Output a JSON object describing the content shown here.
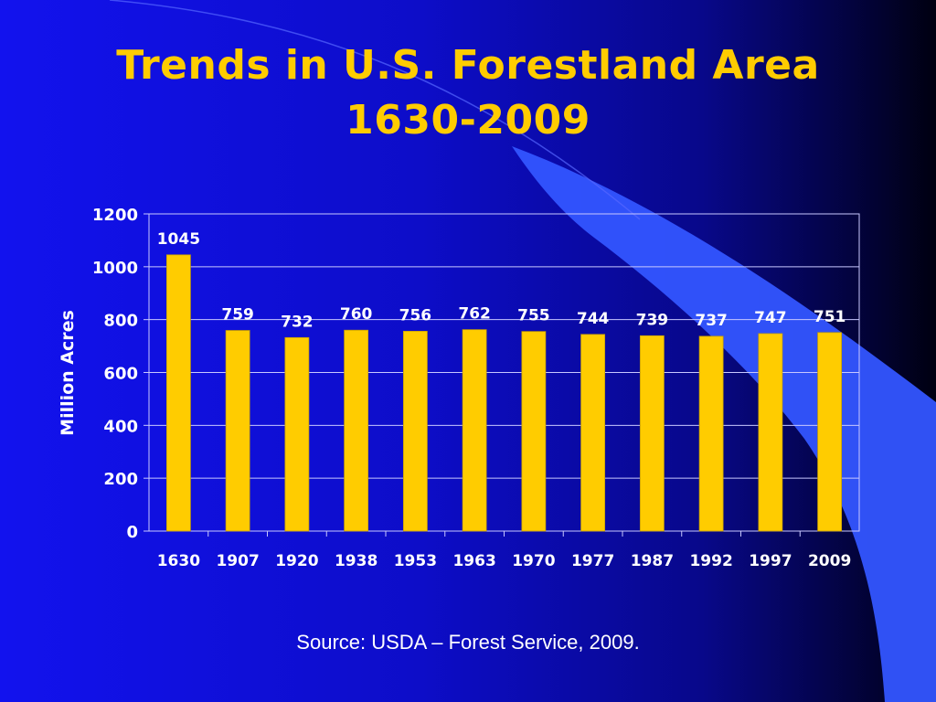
{
  "slide": {
    "title_line1": "Trends in U.S. Forestland Area",
    "title_line2": "1630-2009",
    "source": "Source: USDA – Forest Service, 2009."
  },
  "colors": {
    "title": "#ffcc00",
    "bar": "#ffcc00",
    "bar_edge": "#c9a000",
    "text": "#ffffff",
    "grid": "#c8c8ff",
    "swoosh": "#3355ff"
  },
  "chart_data": {
    "type": "bar",
    "title": "",
    "xlabel": "",
    "ylabel": "Million Acres",
    "categories": [
      "1630",
      "1907",
      "1920",
      "1938",
      "1953",
      "1963",
      "1970",
      "1977",
      "1987",
      "1992",
      "1997",
      "2009"
    ],
    "values": [
      1045,
      759,
      732,
      760,
      756,
      762,
      755,
      744,
      739,
      737,
      747,
      751
    ],
    "ylim": [
      0,
      1200
    ],
    "yticks": [
      0,
      200,
      400,
      600,
      800,
      1000,
      1200
    ],
    "grid": true,
    "legend": "none",
    "data_labels": true
  }
}
